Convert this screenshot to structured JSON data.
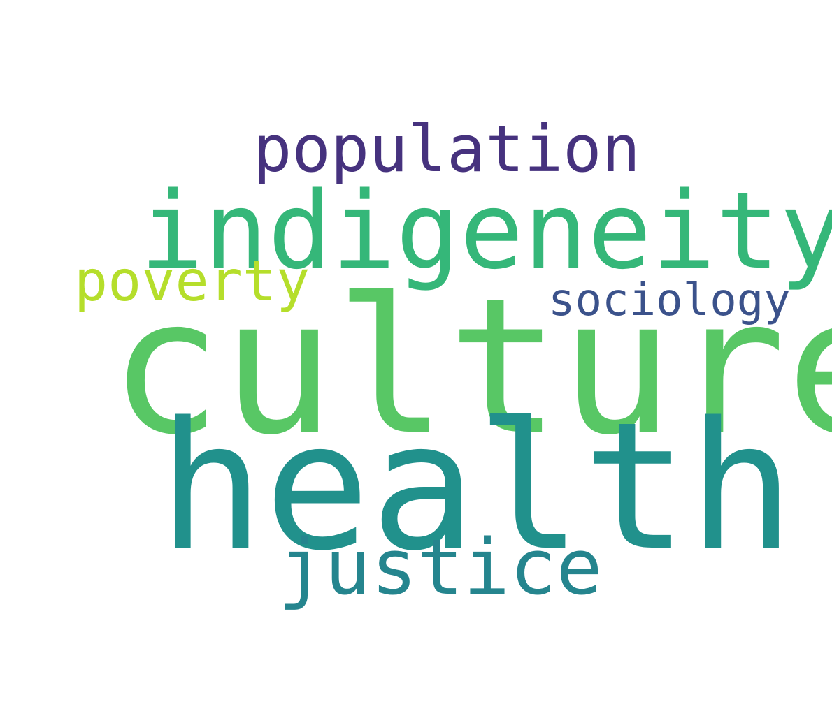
{
  "words": [
    {
      "key": "population",
      "text": "population",
      "color": "#46327e"
    },
    {
      "key": "indigeneity",
      "text": "indigeneity",
      "color": "#35b779"
    },
    {
      "key": "poverty",
      "text": "poverty",
      "color": "#b5de2b"
    },
    {
      "key": "sociology",
      "text": "sociology",
      "color": "#3b528b"
    },
    {
      "key": "culture",
      "text": "culture",
      "color": "#58c765"
    },
    {
      "key": "health",
      "text": "health",
      "color": "#21918c"
    },
    {
      "key": "justice",
      "text": "justice",
      "color": "#25858e"
    }
  ]
}
